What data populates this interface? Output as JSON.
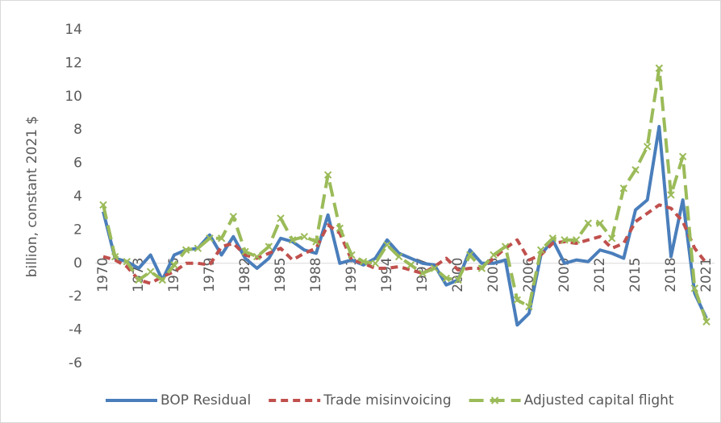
{
  "chart_data": {
    "type": "line",
    "y_axis_label": "billion, constant 2021 $",
    "categories": [
      "1970",
      null,
      null,
      "1973",
      null,
      null,
      "1976",
      null,
      null,
      "1979",
      null,
      null,
      "1982",
      null,
      null,
      "1985",
      null,
      null,
      "1988",
      null,
      null,
      "1991",
      null,
      null,
      "1994",
      null,
      null,
      "1997",
      null,
      null,
      "2000",
      null,
      null,
      "2003",
      null,
      null,
      "2006",
      null,
      null,
      "2009",
      null,
      null,
      "2012",
      null,
      null,
      "2015",
      null,
      null,
      "2018",
      null,
      null,
      "2021"
    ],
    "series": [
      {
        "name": "BOP Residual",
        "color": "#4a7ebb",
        "dash": "solid",
        "values": [
          3.1,
          0.3,
          0.1,
          -0.3,
          0.5,
          -1.0,
          0.5,
          0.8,
          0.9,
          1.7,
          0.5,
          1.6,
          0.3,
          -0.3,
          0.3,
          1.5,
          1.3,
          0.8,
          0.6,
          2.9,
          0.0,
          0.2,
          -0.1,
          0.3,
          1.4,
          0.6,
          0.3,
          0.0,
          -0.1,
          -1.3,
          -1.0,
          0.8,
          0.0,
          0.0,
          0.2,
          -3.7,
          -3.0,
          0.5,
          1.4,
          0.0,
          0.2,
          0.1,
          0.8,
          0.6,
          0.3,
          3.2,
          3.8,
          8.2,
          0.4,
          3.8,
          -1.8,
          -3.3
        ]
      },
      {
        "name": "Trade misinvoicing",
        "color": "#c0504d",
        "dash": "short",
        "values": [
          0.4,
          0.2,
          -0.2,
          -1.0,
          -1.2,
          -0.8,
          -0.5,
          0.0,
          0.0,
          -0.1,
          1.0,
          1.2,
          0.5,
          0.3,
          0.6,
          0.9,
          0.2,
          0.6,
          0.9,
          2.3,
          1.8,
          0.2,
          0.0,
          -0.3,
          -0.3,
          -0.2,
          -0.4,
          -0.6,
          -0.2,
          0.3,
          -0.4,
          -0.3,
          -0.3,
          0.3,
          0.9,
          1.4,
          0.2,
          0.5,
          1.2,
          1.3,
          1.2,
          1.4,
          1.6,
          0.9,
          1.2,
          2.5,
          3.0,
          3.5,
          3.3,
          2.5,
          0.9,
          0.0
        ]
      },
      {
        "name": "Adjusted capital flight",
        "color": "#9bbb59",
        "dash": "long",
        "marker": "x",
        "values": [
          3.5,
          0.4,
          0.1,
          -1.0,
          -0.5,
          -1.0,
          -0.1,
          0.8,
          0.9,
          1.5,
          1.5,
          2.8,
          0.7,
          0.4,
          1.0,
          2.7,
          1.4,
          1.6,
          1.3,
          5.3,
          2.1,
          0.5,
          0.1,
          0.0,
          1.1,
          0.4,
          -0.1,
          -0.6,
          -0.3,
          -0.9,
          -1.0,
          0.5,
          -0.3,
          0.5,
          1.0,
          -2.2,
          -2.6,
          0.8,
          1.5,
          1.4,
          1.4,
          2.4,
          2.4,
          1.5,
          4.5,
          5.6,
          7.0,
          11.7,
          4.1,
          6.4,
          -1.5,
          -3.5
        ]
      }
    ],
    "ylim": [
      -6,
      14
    ],
    "yticks": [
      -6,
      -4,
      -2,
      0,
      2,
      4,
      6,
      8,
      10,
      12,
      14
    ],
    "grid": false,
    "legend": "bottom"
  }
}
